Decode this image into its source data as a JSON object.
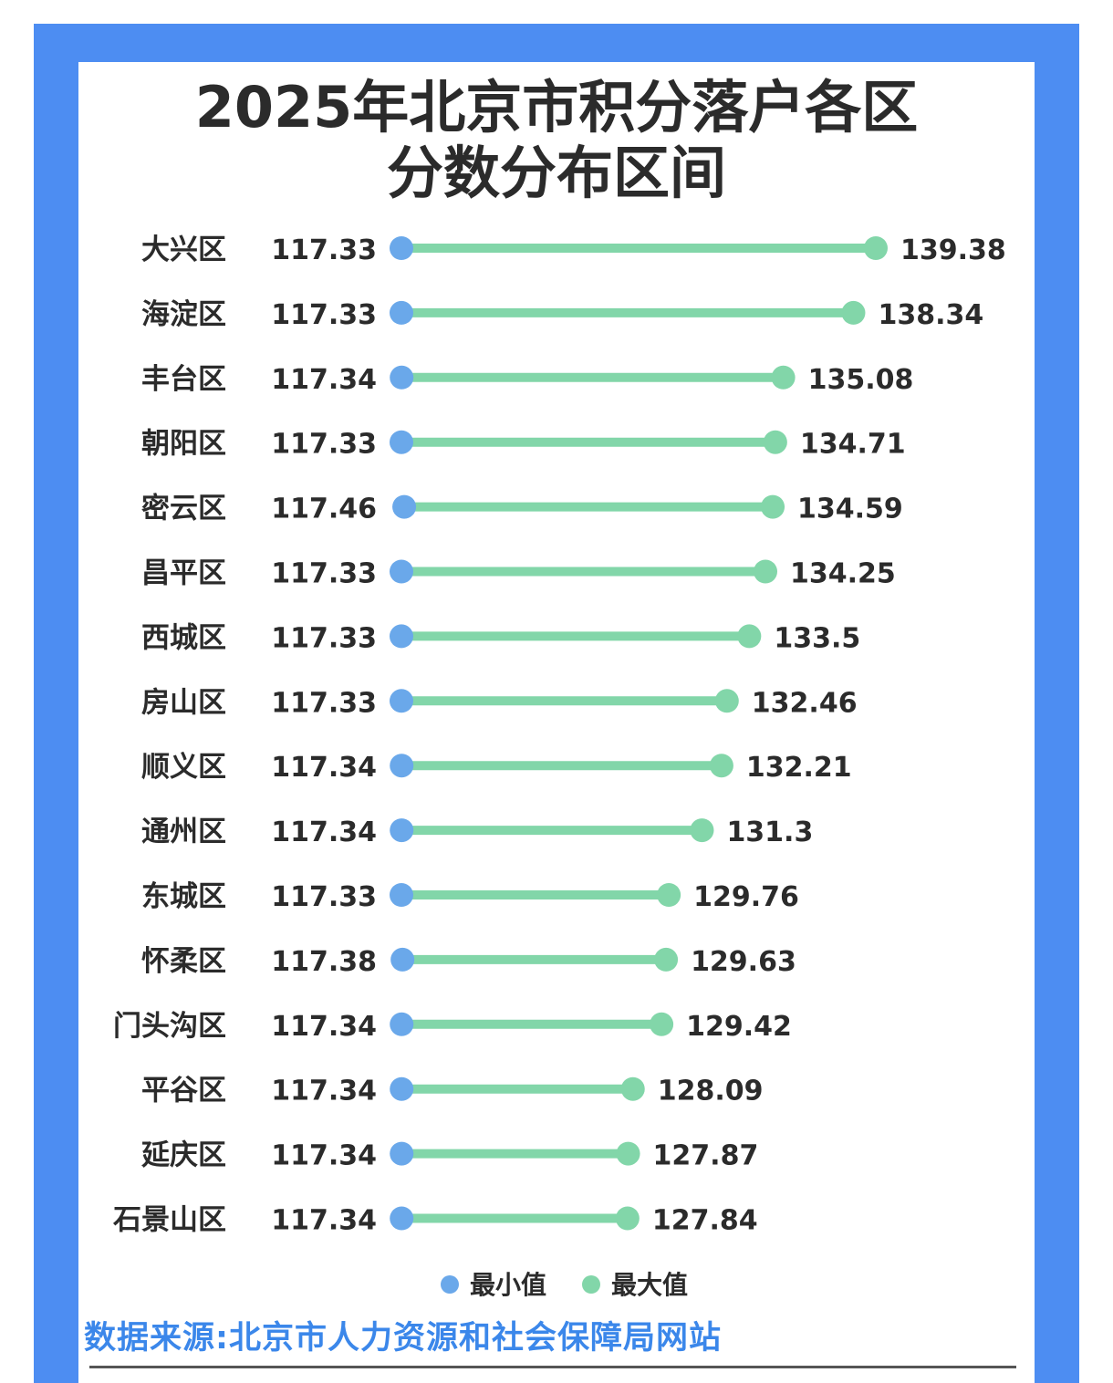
{
  "chart_data": {
    "type": "dumbbell",
    "title": [
      "2025年北京市积分落户各区",
      "分数分布区间"
    ],
    "categories": [
      "大兴区",
      "海淀区",
      "丰台区",
      "朝阳区",
      "密云区",
      "昌平区",
      "西城区",
      "房山区",
      "顺义区",
      "通州区",
      "东城区",
      "怀柔区",
      "门头沟区",
      "平谷区",
      "延庆区",
      "石景山区"
    ],
    "series": [
      {
        "name": "最小值",
        "color": "#6aa8ea",
        "values": [
          117.33,
          117.33,
          117.34,
          117.33,
          117.46,
          117.33,
          117.33,
          117.33,
          117.34,
          117.34,
          117.33,
          117.38,
          117.34,
          117.34,
          117.34,
          117.34
        ]
      },
      {
        "name": "最大值",
        "color": "#82d6a9",
        "values": [
          139.38,
          138.34,
          135.08,
          134.71,
          134.59,
          134.25,
          133.5,
          132.46,
          132.21,
          131.3,
          129.76,
          129.63,
          129.42,
          128.09,
          127.87,
          127.84
        ]
      }
    ],
    "min_labels": [
      "117.33",
      "117.33",
      "117.34",
      "117.33",
      "117.46",
      "117.33",
      "117.33",
      "117.33",
      "117.34",
      "117.34",
      "117.33",
      "117.38",
      "117.34",
      "117.34",
      "117.34",
      "117.34"
    ],
    "max_labels": [
      "139.38",
      "138.34",
      "135.08",
      "134.71",
      "134.59",
      "134.25",
      "133.5",
      "132.46",
      "132.21",
      "131.3",
      "129.76",
      "129.63",
      "129.42",
      "128.09",
      "127.87",
      "127.84"
    ],
    "legend_position": "bottom",
    "grid": false
  },
  "source": "数据来源:北京市人力资源和社会保障局网站",
  "colors": {
    "frame": "#4d8df2",
    "line": "#82d6a9",
    "min_dot": "#6aa8ea",
    "max_dot": "#82d6a9",
    "source_text": "#3b87ea"
  }
}
